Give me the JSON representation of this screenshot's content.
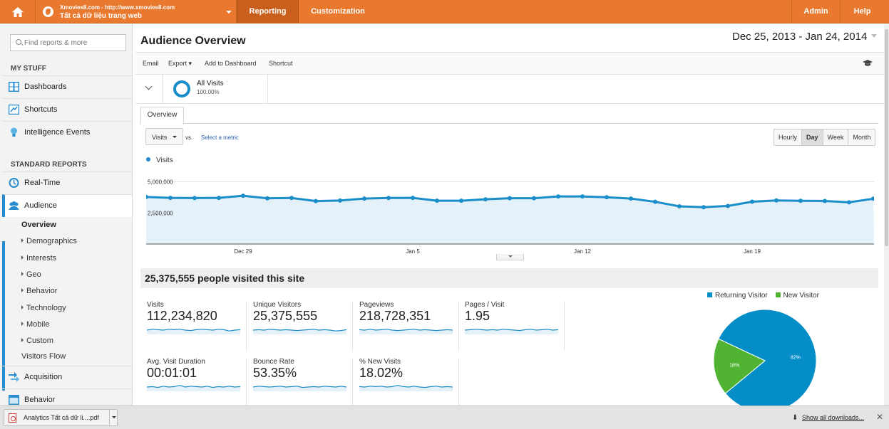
{
  "topbar": {
    "account_line1": "Xmovies8.com - http://www.xmovies8.com",
    "account_line2": "Tất cả dữ liệu trang web",
    "nav": {
      "reporting": "Reporting",
      "customization": "Customization",
      "admin": "Admin",
      "help": "Help"
    }
  },
  "sidebar": {
    "search_placeholder": "Find reports & more",
    "my_stuff": "MY STUFF",
    "dashboards": "Dashboards",
    "shortcuts": "Shortcuts",
    "intelligence": "Intelligence Events",
    "standard_reports": "STANDARD REPORTS",
    "realtime": "Real-Time",
    "audience": "Audience",
    "audience_sub": {
      "overview": "Overview",
      "demographics": "Demographics",
      "interests": "Interests",
      "geo": "Geo",
      "behavior": "Behavior",
      "technology": "Technology",
      "mobile": "Mobile",
      "custom": "Custom",
      "visitors_flow": "Visitors Flow"
    },
    "acquisition": "Acquisition",
    "behavior": "Behavior"
  },
  "main": {
    "title": "Audience Overview",
    "date_range": "Dec 25, 2013 - Jan 24, 2014",
    "actions": {
      "email": "Email",
      "export": "Export ▾",
      "dashboard": "Add to Dashboard",
      "shortcut": "Shortcut"
    },
    "segment": {
      "name": "All Visits",
      "pct": "100.00%"
    },
    "tab_overview": "Overview",
    "metric_select": "Visits",
    "vs": "vs.",
    "select_metric": "Select a metric",
    "granularity": {
      "hourly": "Hourly",
      "day": "Day",
      "week": "Week",
      "month": "Month",
      "selected": "Day"
    },
    "summary": "25,375,555 people visited this site"
  },
  "chart_data": {
    "type": "line",
    "title": "",
    "series": [
      {
        "name": "Visits",
        "color": "#1a8ec9",
        "values": [
          3780000,
          3710000,
          3690000,
          3710000,
          3880000,
          3670000,
          3700000,
          3450000,
          3490000,
          3650000,
          3700000,
          3710000,
          3480000,
          3480000,
          3590000,
          3680000,
          3680000,
          3820000,
          3820000,
          3760000,
          3650000,
          3390000,
          3030000,
          2960000,
          3060000,
          3400000,
          3500000,
          3470000,
          3460000,
          3350000,
          3640000
        ]
      }
    ],
    "x_tick_labels": [
      {
        "label": "Dec 29",
        "index": 4
      },
      {
        "label": "Jan 5",
        "index": 11
      },
      {
        "label": "Jan 12",
        "index": 18
      },
      {
        "label": "Jan 19",
        "index": 25
      }
    ],
    "y_tick_labels": [
      "5,000,000",
      "2,500,000"
    ],
    "ylim": [
      0,
      6000000
    ],
    "grid": true
  },
  "metrics": [
    {
      "name": "Visits",
      "value": "112,234,820",
      "spark": [
        0.5,
        0.6,
        0.55,
        0.5,
        0.6,
        0.55,
        0.6,
        0.5,
        0.45,
        0.55,
        0.6,
        0.55,
        0.5,
        0.6,
        0.55,
        0.4,
        0.5,
        0.55
      ]
    },
    {
      "name": "Unique Visitors",
      "value": "25,375,555",
      "spark": [
        0.5,
        0.55,
        0.5,
        0.6,
        0.55,
        0.5,
        0.55,
        0.5,
        0.45,
        0.5,
        0.55,
        0.6,
        0.5,
        0.55,
        0.5,
        0.4,
        0.45,
        0.55
      ]
    },
    {
      "name": "Pageviews",
      "value": "218,728,351",
      "spark": [
        0.55,
        0.5,
        0.6,
        0.5,
        0.55,
        0.6,
        0.5,
        0.45,
        0.5,
        0.55,
        0.6,
        0.5,
        0.55,
        0.5,
        0.45,
        0.5,
        0.55,
        0.5
      ]
    },
    {
      "name": "Pages / Visit",
      "value": "1.95",
      "spark": [
        0.5,
        0.55,
        0.6,
        0.55,
        0.5,
        0.55,
        0.5,
        0.6,
        0.55,
        0.5,
        0.45,
        0.55,
        0.6,
        0.5,
        0.55,
        0.6,
        0.5,
        0.55
      ]
    },
    {
      "name": "Avg. Visit Duration",
      "value": "00:01:01",
      "spark": [
        0.5,
        0.55,
        0.45,
        0.6,
        0.5,
        0.55,
        0.7,
        0.5,
        0.6,
        0.55,
        0.5,
        0.6,
        0.45,
        0.55,
        0.5,
        0.6,
        0.5,
        0.55
      ]
    },
    {
      "name": "Bounce Rate",
      "value": "53.35%",
      "spark": [
        0.5,
        0.6,
        0.55,
        0.5,
        0.55,
        0.6,
        0.5,
        0.55,
        0.6,
        0.45,
        0.5,
        0.55,
        0.5,
        0.6,
        0.55,
        0.5,
        0.6,
        0.5
      ]
    },
    {
      "name": "% New Visits",
      "value": "18.02%",
      "spark": [
        0.55,
        0.5,
        0.6,
        0.55,
        0.6,
        0.5,
        0.55,
        0.7,
        0.55,
        0.5,
        0.6,
        0.5,
        0.45,
        0.55,
        0.6,
        0.5,
        0.55,
        0.5
      ]
    }
  ],
  "pie": {
    "legend": [
      "Returning Visitor",
      "New Visitor"
    ],
    "colors": [
      "#058dc7",
      "#50b432"
    ],
    "values": [
      82,
      18
    ],
    "labels": [
      "82%",
      "18%"
    ]
  },
  "downloads": {
    "file": "Analytics Tất cả dữ li....pdf",
    "show_all": "Show all downloads..."
  }
}
